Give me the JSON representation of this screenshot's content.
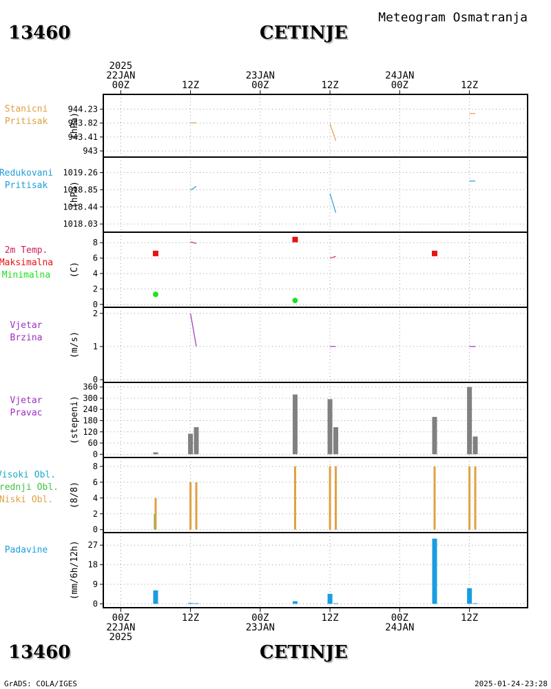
{
  "header": {
    "station_id": "13460",
    "station_name": "CETINJE",
    "product": "Meteogram Osmatranja"
  },
  "footer": {
    "station_id": "13460",
    "station_name": "CETINJE",
    "credit": "GrADS: COLA/IGES",
    "generated": "2025-01-24-23:28"
  },
  "time_axis": {
    "top_labels": [
      {
        "hour": 0,
        "lines": [
          "2025",
          "22JAN",
          "00Z"
        ]
      },
      {
        "hour": 12,
        "lines": [
          "12Z"
        ]
      },
      {
        "hour": 24,
        "lines": [
          "23JAN",
          "00Z"
        ]
      },
      {
        "hour": 36,
        "lines": [
          "12Z"
        ]
      },
      {
        "hour": 48,
        "lines": [
          "24JAN",
          "00Z"
        ]
      },
      {
        "hour": 60,
        "lines": [
          "12Z"
        ]
      }
    ],
    "bottom_labels": [
      {
        "hour": 0,
        "lines": [
          "00Z",
          "22JAN",
          "2025"
        ]
      },
      {
        "hour": 12,
        "lines": [
          "12Z"
        ]
      },
      {
        "hour": 24,
        "lines": [
          "00Z",
          "23JAN"
        ]
      },
      {
        "hour": 36,
        "lines": [
          "12Z"
        ]
      },
      {
        "hour": 48,
        "lines": [
          "00Z",
          "24JAN"
        ]
      },
      {
        "hour": 60,
        "lines": [
          "12Z"
        ]
      }
    ],
    "range_hours": [
      -3,
      70
    ]
  },
  "colors": {
    "pressure_station": "#e0a040",
    "pressure_reduced": "#1e9fd8",
    "temp_label": "#cc2060",
    "temp_max": "#e81010",
    "temp_min": "#20e020",
    "wind": "#9b30c0",
    "wind_dir_bar": "#808080",
    "cloud_high": "#1aa9c8",
    "cloud_mid": "#40c040",
    "cloud_low": "#e0a040",
    "precip": "#1a9de0",
    "cloud_label_high": "#1aa9c8",
    "cloud_label_mid": "#40c040",
    "cloud_label_low": "#e0a040"
  },
  "chart_data": [
    {
      "type": "line",
      "name": "station_pressure",
      "label_lines": [
        "Stanicni",
        "Pritisak"
      ],
      "unit": "(hPa)",
      "yticks": [
        "944.23",
        "943.82",
        "943.41",
        "943"
      ],
      "ytick_values": [
        944.23,
        943.82,
        943.41,
        943
      ],
      "ylim": [
        942.9,
        944.5
      ],
      "segments": [
        [
          [
            12,
            943.82
          ],
          [
            13,
            943.83
          ]
        ],
        [
          [
            36,
            943.8
          ],
          [
            37,
            943.3
          ]
        ],
        [
          [
            60,
            944.1
          ],
          [
            61,
            944.1
          ]
        ]
      ]
    },
    {
      "type": "line",
      "name": "reduced_pressure",
      "label_lines": [
        "Redukovani",
        "Pritisak"
      ],
      "unit": "(hPa)",
      "yticks": [
        "1019.26",
        "1018.85",
        "1018.44",
        "1018.03"
      ],
      "ytick_values": [
        1019.26,
        1018.85,
        1018.44,
        1018.03
      ],
      "ylim": [
        1017.9,
        1019.5
      ],
      "segments": [
        [
          [
            12,
            1018.84
          ],
          [
            13,
            1018.93
          ]
        ],
        [
          [
            36,
            1018.76
          ],
          [
            37,
            1018.3
          ]
        ],
        [
          [
            60,
            1019.06
          ],
          [
            61,
            1019.06
          ]
        ]
      ]
    },
    {
      "type": "scatter",
      "name": "temperature",
      "label_lines": [
        "2m Temp.",
        "Maksimalna",
        "Minimalna"
      ],
      "unit": "(C)",
      "yticks": [
        "8",
        "6",
        "4",
        "2",
        "0"
      ],
      "ytick_values": [
        8,
        6,
        4,
        2,
        0
      ],
      "ylim": [
        -0.2,
        9
      ],
      "max_points": [
        [
          6,
          6.6
        ],
        [
          30,
          8.4
        ],
        [
          54,
          6.6
        ]
      ],
      "min_points": [
        [
          6,
          1.3
        ],
        [
          30,
          0.5
        ]
      ],
      "segments": [
        [
          [
            12,
            8.1
          ],
          [
            13,
            7.9
          ]
        ],
        [
          [
            36,
            6.0
          ],
          [
            37,
            6.2
          ]
        ]
      ]
    },
    {
      "type": "line",
      "name": "wind_speed",
      "label_lines": [
        "Vjetar",
        "Brzina"
      ],
      "unit": "(m/s)",
      "yticks": [
        "2",
        "1",
        "0"
      ],
      "ytick_values": [
        2,
        1,
        0
      ],
      "ylim": [
        0,
        2.1
      ],
      "segments": [
        [
          [
            12,
            2.0
          ],
          [
            13,
            1.0
          ]
        ],
        [
          [
            36,
            1.0
          ],
          [
            37,
            1.0
          ]
        ],
        [
          [
            60,
            1.0
          ],
          [
            61,
            1.0
          ]
        ]
      ]
    },
    {
      "type": "bar",
      "name": "wind_direction",
      "label_lines": [
        "Vjetar",
        "Pravac"
      ],
      "unit": "(stepeni)",
      "yticks": [
        "360",
        "300",
        "240",
        "180",
        "120",
        "60",
        "0"
      ],
      "ytick_values": [
        360,
        300,
        240,
        180,
        120,
        60,
        0
      ],
      "ylim": [
        -10,
        370
      ],
      "bars": [
        {
          "x": 6,
          "value": 10
        },
        {
          "x": 12,
          "value": 110
        },
        {
          "x": 13,
          "value": 145
        },
        {
          "x": 30,
          "value": 320
        },
        {
          "x": 36,
          "value": 295
        },
        {
          "x": 37,
          "value": 145
        },
        {
          "x": 54,
          "value": 200
        },
        {
          "x": 60,
          "value": 360
        },
        {
          "x": 61,
          "value": 95
        }
      ]
    },
    {
      "type": "bar",
      "name": "cloud_cover",
      "label_lines": [
        "Visoki Obl.",
        "Srednji Obl.",
        "Niski Obl."
      ],
      "unit": "(8/8)",
      "yticks": [
        "8",
        "6",
        "4",
        "2",
        "0"
      ],
      "ytick_values": [
        8,
        6,
        4,
        2,
        0
      ],
      "ylim": [
        -0.2,
        8.6
      ],
      "series": [
        {
          "name": "Visoki Obl.",
          "values": [
            [
              6,
              0
            ],
            [
              12,
              0
            ],
            [
              13,
              0
            ],
            [
              30,
              0
            ],
            [
              36,
              0
            ],
            [
              37,
              0
            ],
            [
              54,
              0
            ],
            [
              60,
              0
            ],
            [
              61,
              0
            ]
          ]
        },
        {
          "name": "Srednji Obl.",
          "values": [
            [
              6,
              2
            ],
            [
              12,
              0
            ],
            [
              13,
              0
            ],
            [
              30,
              0
            ],
            [
              36,
              0
            ],
            [
              37,
              0
            ],
            [
              54,
              0
            ],
            [
              60,
              0
            ],
            [
              61,
              0
            ]
          ]
        },
        {
          "name": "Niski Obl.",
          "values": [
            [
              6,
              4
            ],
            [
              12,
              6
            ],
            [
              13,
              6
            ],
            [
              30,
              8
            ],
            [
              36,
              8
            ],
            [
              37,
              8
            ],
            [
              54,
              8
            ],
            [
              60,
              8
            ],
            [
              61,
              8
            ]
          ]
        }
      ]
    },
    {
      "type": "bar",
      "name": "precipitation",
      "label_lines": [
        "Padavine"
      ],
      "unit": "(mm/6h/12h)",
      "yticks": [
        "27",
        "18",
        "9",
        "0"
      ],
      "ytick_values": [
        27,
        18,
        9,
        0
      ],
      "ylim": [
        -0.5,
        31.5
      ],
      "bars": [
        {
          "x": 6,
          "value": 6.2
        },
        {
          "x": 12,
          "value": 0.4
        },
        {
          "x": 13,
          "value": 0.3
        },
        {
          "x": 30,
          "value": 1.2
        },
        {
          "x": 36,
          "value": 4.6
        },
        {
          "x": 37,
          "value": 0.3
        },
        {
          "x": 54,
          "value": 30
        },
        {
          "x": 60,
          "value": 7.2
        },
        {
          "x": 61,
          "value": 0.3
        }
      ]
    }
  ]
}
